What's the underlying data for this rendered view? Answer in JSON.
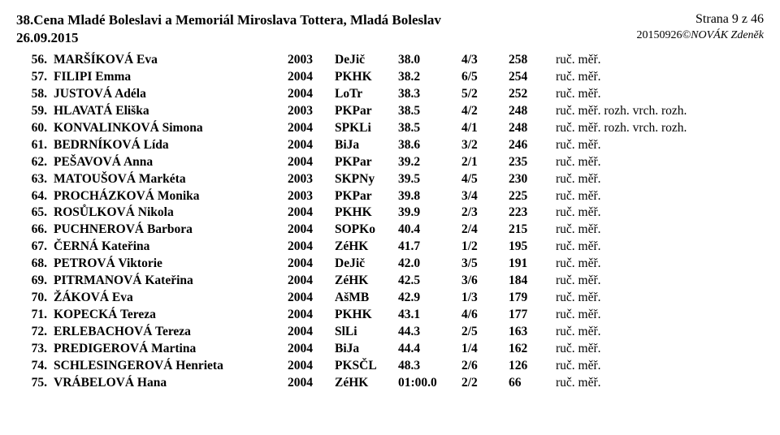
{
  "header": {
    "title_line1": "38.Cena Mladé Boleslavi a Memoriál Miroslava Tottera, Mladá Boleslav",
    "title_line2": "26.09.2015",
    "page": "Strana 9 z 46",
    "subline_code": "20150926",
    "subline_author": "©NOVÁK Zdeněk"
  },
  "rows": [
    {
      "rank": "56.",
      "name": "MARŠÍKOVÁ Eva",
      "year": "2003",
      "club": "DeJič",
      "time": "38.0",
      "place": "4/3",
      "pts": "258",
      "note": "ruč. měř."
    },
    {
      "rank": "57.",
      "name": "FILIPI Emma",
      "year": "2004",
      "club": "PKHK",
      "time": "38.2",
      "place": "6/5",
      "pts": "254",
      "note": "ruč. měř."
    },
    {
      "rank": "58.",
      "name": "JUSTOVÁ Adéla",
      "year": "2004",
      "club": "LoTr",
      "time": "38.3",
      "place": "5/2",
      "pts": "252",
      "note": "ruč. měř."
    },
    {
      "rank": "59.",
      "name": "HLAVATÁ Eliška",
      "year": "2003",
      "club": "PKPar",
      "time": "38.5",
      "place": "4/2",
      "pts": "248",
      "note": "ruč. měř. rozh. vrch. rozh."
    },
    {
      "rank": "60.",
      "name": "KONVALINKOVÁ Simona",
      "year": "2004",
      "club": "SPKLi",
      "time": "38.5",
      "place": "4/1",
      "pts": "248",
      "note": "ruč. měř. rozh. vrch. rozh."
    },
    {
      "rank": "61.",
      "name": "BEDRNÍKOVÁ Lída",
      "year": "2004",
      "club": "BiJa",
      "time": "38.6",
      "place": "3/2",
      "pts": "246",
      "note": "ruč. měř."
    },
    {
      "rank": "62.",
      "name": "PEŠAVOVÁ Anna",
      "year": "2004",
      "club": "PKPar",
      "time": "39.2",
      "place": "2/1",
      "pts": "235",
      "note": "ruč. měř."
    },
    {
      "rank": "63.",
      "name": "MATOUŠOVÁ Markéta",
      "year": "2003",
      "club": "SKPNy",
      "time": "39.5",
      "place": "4/5",
      "pts": "230",
      "note": "ruč. měř."
    },
    {
      "rank": "64.",
      "name": "PROCHÁZKOVÁ Monika",
      "year": "2003",
      "club": "PKPar",
      "time": "39.8",
      "place": "3/4",
      "pts": "225",
      "note": "ruč. měř."
    },
    {
      "rank": "65.",
      "name": "ROSŮLKOVÁ Nikola",
      "year": "2004",
      "club": "PKHK",
      "time": "39.9",
      "place": "2/3",
      "pts": "223",
      "note": "ruč. měř."
    },
    {
      "rank": "66.",
      "name": "PUCHNEROVÁ Barbora",
      "year": "2004",
      "club": "SOPKo",
      "time": "40.4",
      "place": "2/4",
      "pts": "215",
      "note": "ruč. měř."
    },
    {
      "rank": "67.",
      "name": "ČERNÁ Kateřina",
      "year": "2004",
      "club": "ZéHK",
      "time": "41.7",
      "place": "1/2",
      "pts": "195",
      "note": "ruč. měř."
    },
    {
      "rank": "68.",
      "name": "PETROVÁ Viktorie",
      "year": "2004",
      "club": "DeJič",
      "time": "42.0",
      "place": "3/5",
      "pts": "191",
      "note": "ruč. měř."
    },
    {
      "rank": "69.",
      "name": "PITRMANOVÁ Kateřina",
      "year": "2004",
      "club": "ZéHK",
      "time": "42.5",
      "place": "3/6",
      "pts": "184",
      "note": "ruč. měř."
    },
    {
      "rank": "70.",
      "name": "ŽÁKOVÁ Eva",
      "year": "2004",
      "club": "AšMB",
      "time": "42.9",
      "place": "1/3",
      "pts": "179",
      "note": "ruč. měř."
    },
    {
      "rank": "71.",
      "name": "KOPECKÁ Tereza",
      "year": "2004",
      "club": "PKHK",
      "time": "43.1",
      "place": "4/6",
      "pts": "177",
      "note": "ruč. měř."
    },
    {
      "rank": "72.",
      "name": "ERLEBACHOVÁ Tereza",
      "year": "2004",
      "club": "SlLi",
      "time": "44.3",
      "place": "2/5",
      "pts": "163",
      "note": "ruč. měř."
    },
    {
      "rank": "73.",
      "name": "PREDIGEROVÁ Martina",
      "year": "2004",
      "club": "BiJa",
      "time": "44.4",
      "place": "1/4",
      "pts": "162",
      "note": "ruč. měř."
    },
    {
      "rank": "74.",
      "name": "SCHLESINGEROVÁ Henrieta",
      "year": "2004",
      "club": "PKSČL",
      "time": "48.3",
      "place": "2/6",
      "pts": "126",
      "note": "ruč. měř."
    },
    {
      "rank": "75.",
      "name": "VRÁBELOVÁ Hana",
      "year": "2004",
      "club": "ZéHK",
      "time": "01:00.0",
      "place": "2/2",
      "pts": "66",
      "note": "ruč. měř."
    }
  ]
}
